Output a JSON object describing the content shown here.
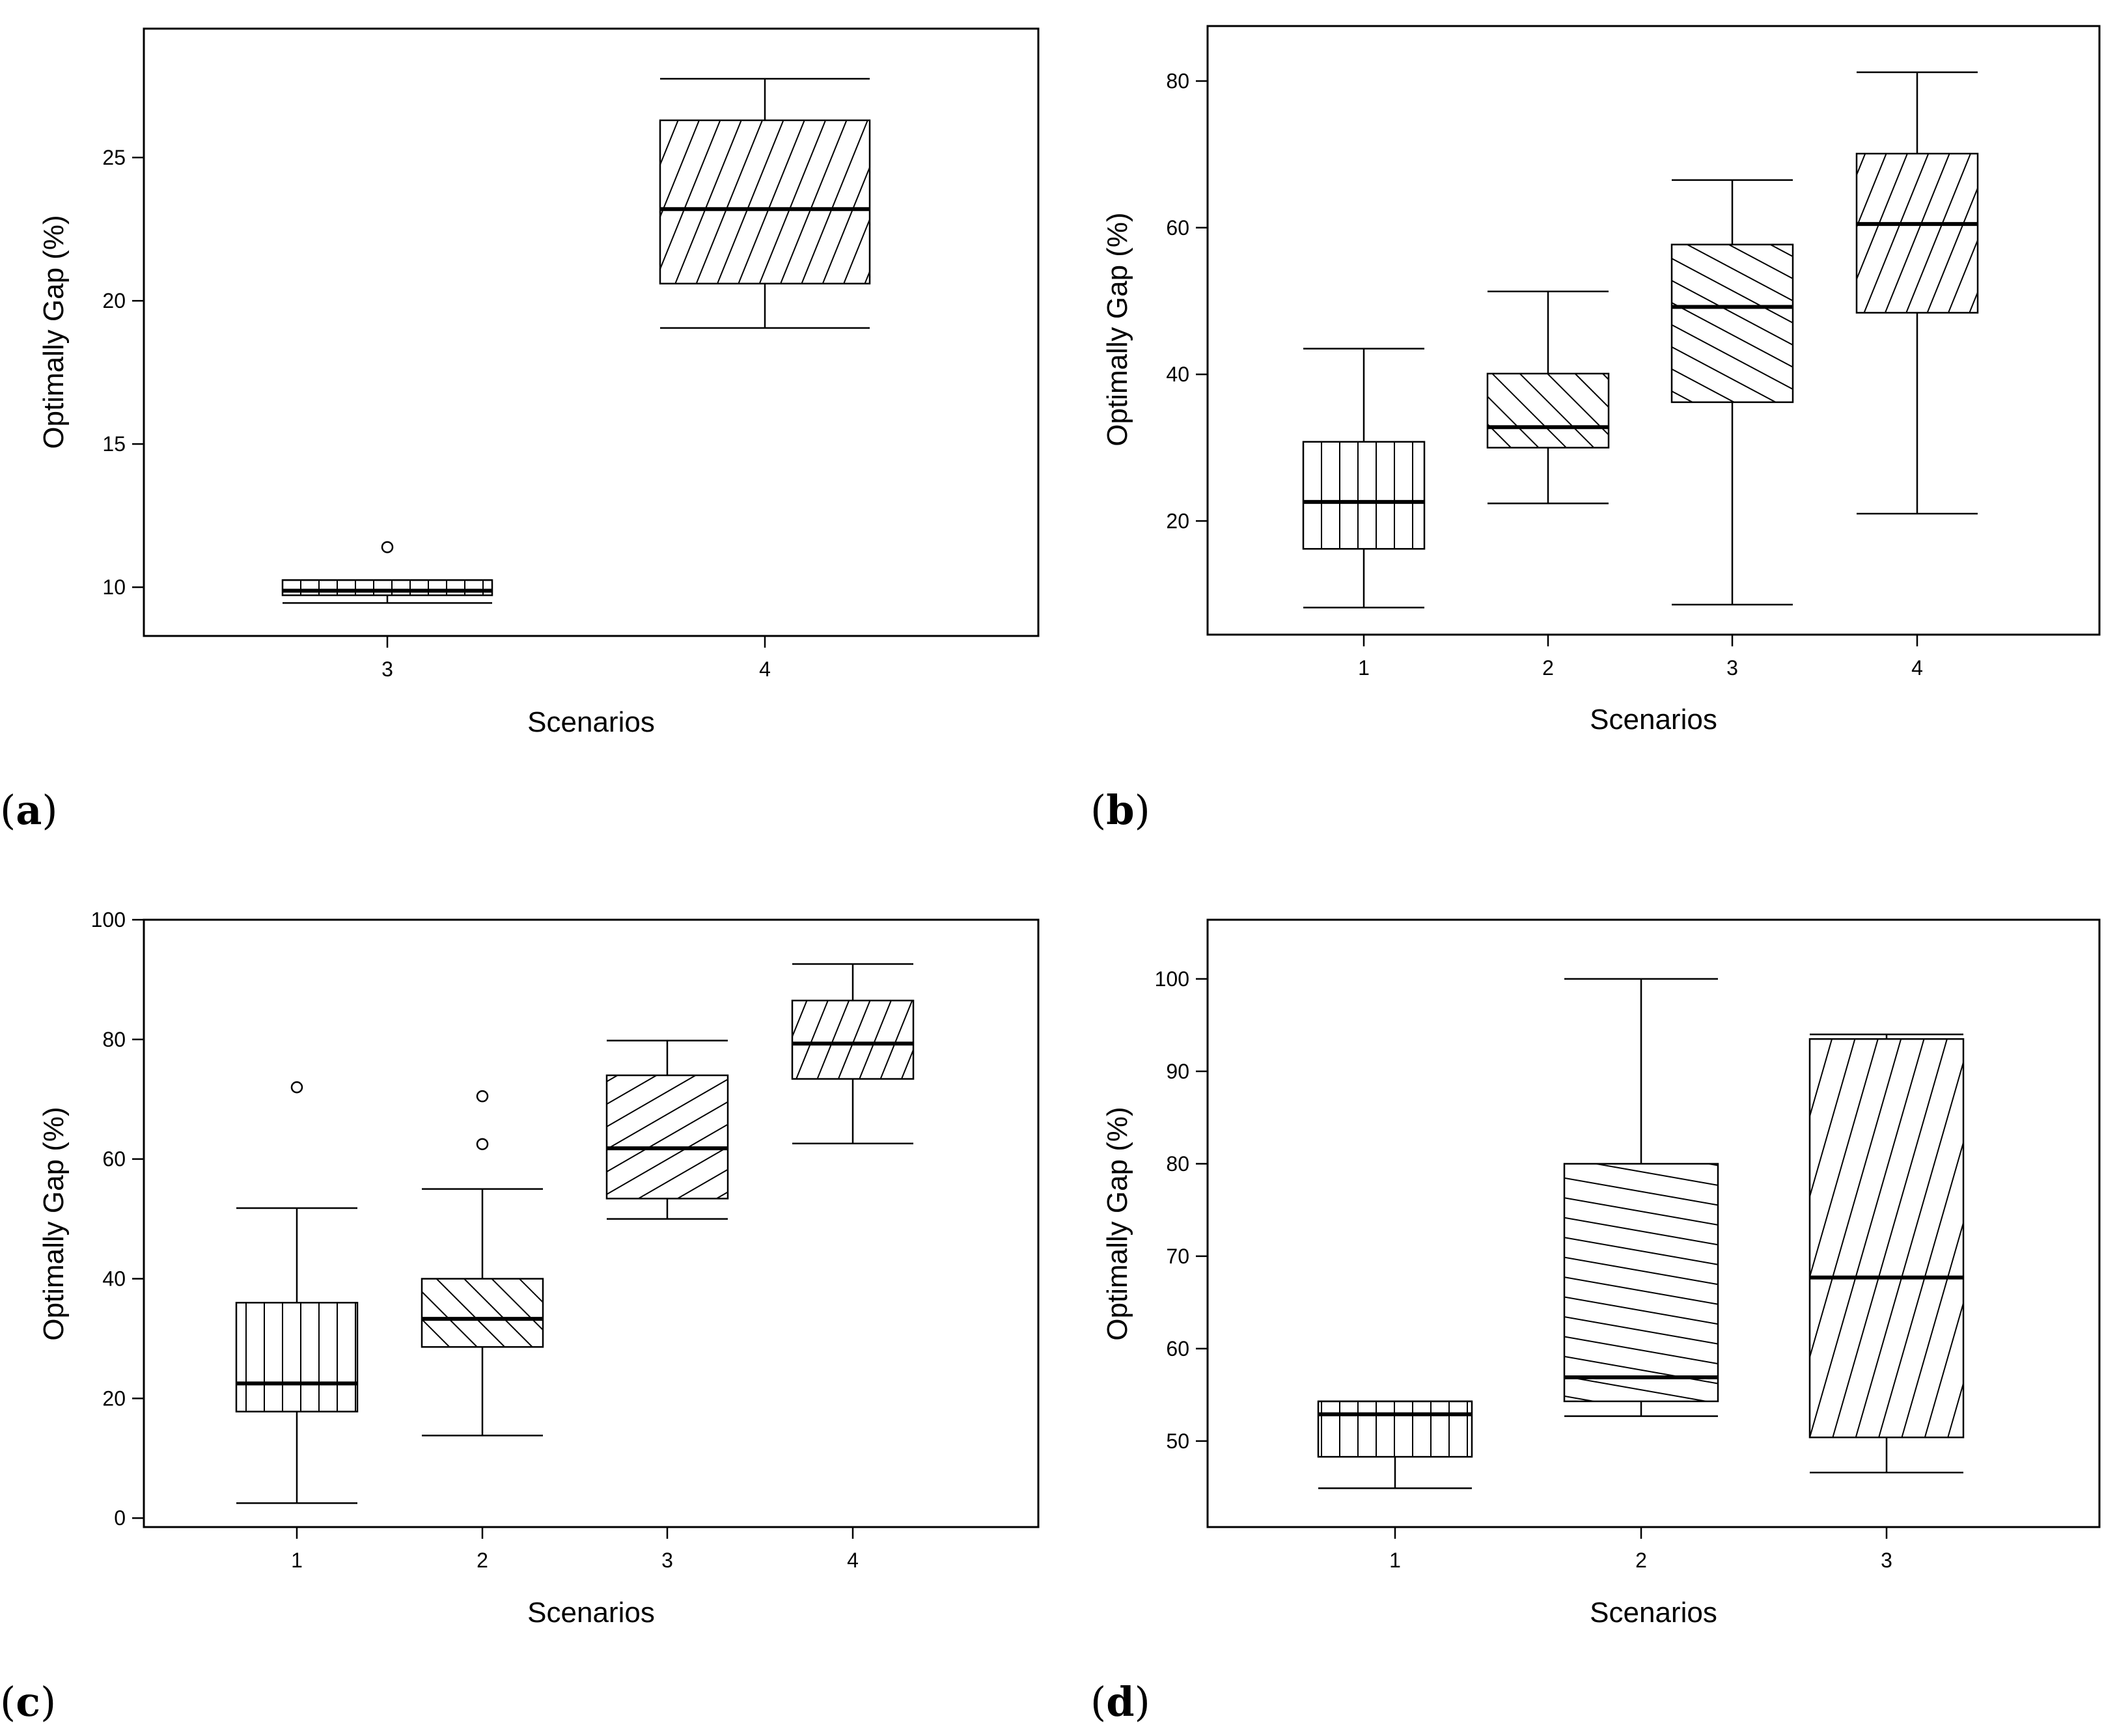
{
  "figure": {
    "panels": [
      "a",
      "b",
      "c",
      "d"
    ]
  },
  "chart_data": [
    {
      "id": "a",
      "type": "boxplot",
      "panel_label": "a",
      "xlabel": "Scenarios",
      "ylabel": "Optimally Gap (%)",
      "ylim": [
        8.3,
        29.5
      ],
      "yticks": [
        10,
        15,
        20,
        25
      ],
      "categories": [
        "3",
        "4"
      ],
      "hatch": [
        "vertical",
        "diagonal-steep"
      ],
      "boxes": [
        {
          "category": "3",
          "min": 9.45,
          "q1": 9.72,
          "median": 9.88,
          "q3": 10.25,
          "max": 10.25,
          "outliers": [
            11.4
          ]
        },
        {
          "category": "4",
          "min": 19.05,
          "q1": 20.6,
          "median": 23.2,
          "q3": 26.3,
          "max": 27.75,
          "outliers": []
        }
      ]
    },
    {
      "id": "b",
      "type": "boxplot",
      "panel_label": "b",
      "xlabel": "Scenarios",
      "ylabel": "Optimally Gap (%)",
      "ylim": [
        4.5,
        87.5
      ],
      "yticks": [
        20,
        40,
        60,
        80
      ],
      "categories": [
        "1",
        "2",
        "3",
        "4"
      ],
      "hatch": [
        "vertical",
        "diagonal-down",
        "diagonal-down-shallow",
        "diagonal-steep"
      ],
      "boxes": [
        {
          "category": "1",
          "min": 8.2,
          "q1": 16.2,
          "median": 22.6,
          "q3": 30.8,
          "max": 43.5,
          "outliers": []
        },
        {
          "category": "2",
          "min": 22.4,
          "q1": 30.0,
          "median": 32.8,
          "q3": 40.1,
          "max": 51.3,
          "outliers": []
        },
        {
          "category": "3",
          "min": 8.6,
          "q1": 36.2,
          "median": 49.2,
          "q3": 57.7,
          "max": 66.5,
          "outliers": []
        },
        {
          "category": "4",
          "min": 21.0,
          "q1": 48.4,
          "median": 60.5,
          "q3": 70.1,
          "max": 81.2,
          "outliers": []
        }
      ]
    },
    {
      "id": "c",
      "type": "boxplot",
      "panel_label": "c",
      "xlabel": "Scenarios",
      "ylabel": "Optimally Gap (%)",
      "ylim": [
        -1.5,
        100
      ],
      "yticks": [
        0,
        20,
        40,
        60,
        80,
        100
      ],
      "categories": [
        "1",
        "2",
        "3",
        "4"
      ],
      "hatch": [
        "vertical",
        "diagonal-down",
        "diagonal-shallow-up",
        "diagonal-steep"
      ],
      "boxes": [
        {
          "category": "1",
          "min": 2.5,
          "q1": 17.8,
          "median": 22.5,
          "q3": 36.0,
          "max": 51.8,
          "outliers": [
            72.0
          ]
        },
        {
          "category": "2",
          "min": 13.8,
          "q1": 28.6,
          "median": 33.3,
          "q3": 40.0,
          "max": 55.0,
          "outliers": [
            62.5,
            70.5
          ]
        },
        {
          "category": "3",
          "min": 50.0,
          "q1": 53.4,
          "median": 61.8,
          "q3": 74.0,
          "max": 79.8,
          "outliers": []
        },
        {
          "category": "4",
          "min": 62.6,
          "q1": 73.4,
          "median": 79.3,
          "q3": 86.5,
          "max": 92.6,
          "outliers": []
        }
      ]
    },
    {
      "id": "d",
      "type": "boxplot",
      "panel_label": "d",
      "xlabel": "Scenarios",
      "ylabel": "Optimally Gap (%)",
      "ylim": [
        40.7,
        106.4
      ],
      "yticks": [
        50,
        60,
        70,
        80,
        90,
        100
      ],
      "categories": [
        "1",
        "2",
        "3"
      ],
      "hatch": [
        "vertical",
        "shallow-down",
        "steep-up"
      ],
      "boxes": [
        {
          "category": "1",
          "min": 44.9,
          "q1": 48.3,
          "median": 52.9,
          "q3": 54.3,
          "max": 54.3,
          "outliers": []
        },
        {
          "category": "2",
          "min": 52.7,
          "q1": 54.3,
          "median": 56.9,
          "q3": 80.0,
          "max": 100.0,
          "outliers": []
        },
        {
          "category": "3",
          "min": 46.6,
          "q1": 50.4,
          "median": 67.7,
          "q3": 93.5,
          "max": 94.0,
          "outliers": []
        }
      ]
    }
  ]
}
